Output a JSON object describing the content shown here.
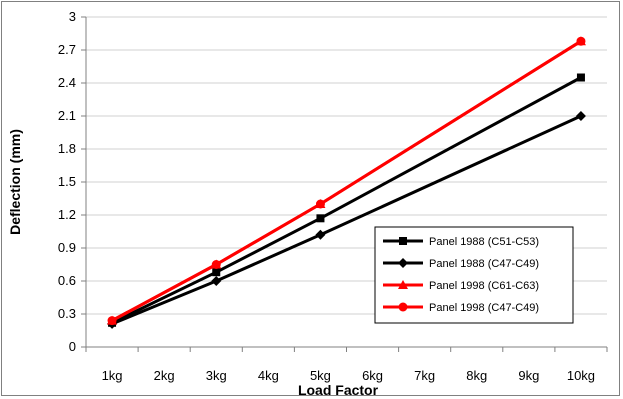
{
  "chart_data": {
    "type": "line",
    "title": "",
    "xlabel": "Load Factor",
    "ylabel": "Deflection (mm)",
    "categories": [
      "1kg",
      "2kg",
      "3kg",
      "4kg",
      "5kg",
      "6kg",
      "7kg",
      "8kg",
      "9kg",
      "10kg"
    ],
    "yticks": [
      "0",
      "0.3",
      "0.6",
      "0.9",
      "1.2",
      "1.5",
      "1.8",
      "2.1",
      "2.4",
      "2.7",
      "3"
    ],
    "ylim": [
      0,
      3
    ],
    "grid": true,
    "legend_position": "right, lower-middle",
    "series": [
      {
        "name": "Panel 1988 (C51-C53)",
        "color": "#000000",
        "marker": "square",
        "x": [
          "1kg",
          "3kg",
          "5kg",
          "10kg"
        ],
        "values": [
          0.22,
          0.68,
          1.17,
          2.45
        ]
      },
      {
        "name": "Panel 1988 (C47-C49)",
        "color": "#000000",
        "marker": "diamond",
        "x": [
          "1kg",
          "3kg",
          "5kg",
          "10kg"
        ],
        "values": [
          0.21,
          0.6,
          1.02,
          2.1
        ]
      },
      {
        "name": "Panel 1998 (C61-C63)",
        "color": "#ff0000",
        "marker": "triangle",
        "x": [
          "1kg",
          "3kg",
          "5kg",
          "10kg"
        ],
        "values": [
          0.24,
          0.75,
          1.3,
          2.78
        ]
      },
      {
        "name": "Panel 1998 (C47-C49)",
        "color": "#ff0000",
        "marker": "circle",
        "x": [
          "1kg",
          "3kg",
          "5kg",
          "10kg"
        ],
        "values": [
          0.24,
          0.75,
          1.3,
          2.78
        ]
      }
    ]
  }
}
